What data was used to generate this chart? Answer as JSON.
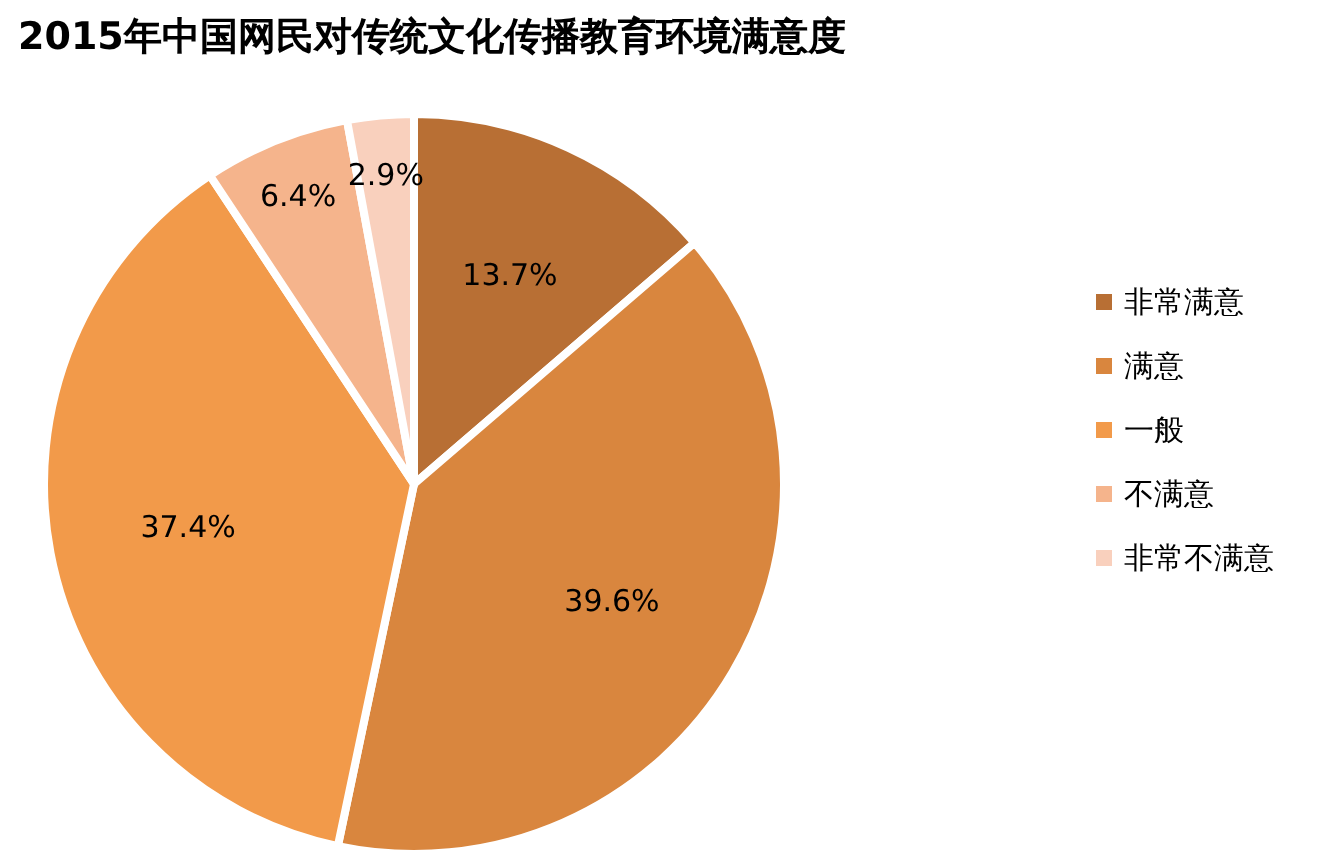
{
  "chart_data": {
    "type": "pie",
    "title": "2015年中国网民对传统文化传播教育环境满意度",
    "categories": [
      "非常满意",
      "满意",
      "一般",
      "不满意",
      "非常不满意"
    ],
    "values": [
      13.7,
      39.6,
      37.4,
      6.4,
      2.9
    ],
    "value_labels": [
      "13.7%",
      "39.6%",
      "37.4%",
      "6.4%",
      "2.9%"
    ],
    "colors": [
      "#b86f34",
      "#d9863e",
      "#f29a4a",
      "#f5b48c",
      "#f9d0bd"
    ],
    "legend": "right"
  }
}
